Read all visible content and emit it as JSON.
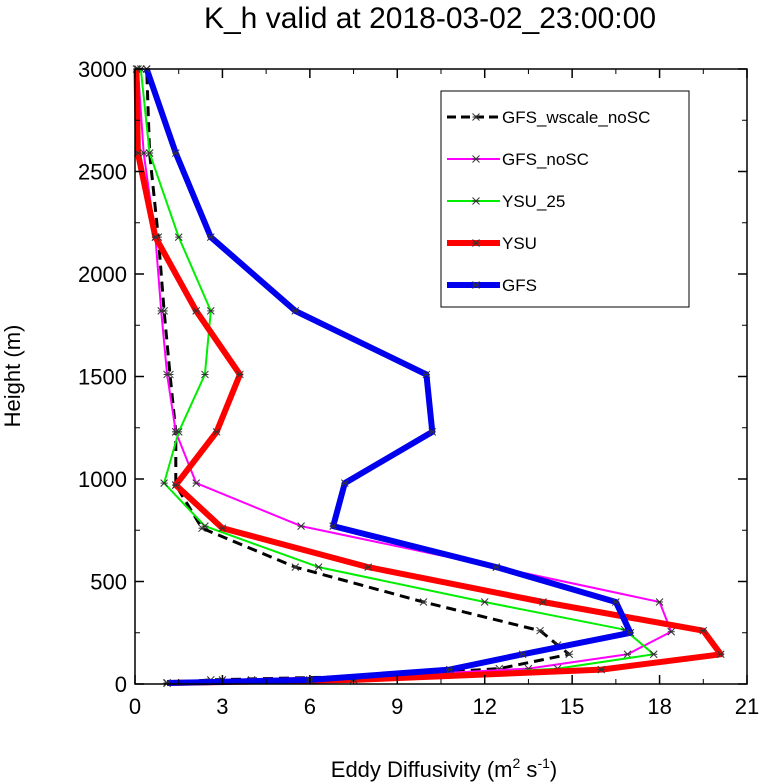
{
  "chart_data": {
    "type": "line",
    "title": "K_h valid at 2018-03-02_23:00:00",
    "xlabel_main": "Eddy Diffusivity (m",
    "xlabel_sup1": "2",
    "xlabel_mid": " s",
    "xlabel_sup2": "-1",
    "xlabel_end": ")",
    "ylabel": "Height (m)",
    "xlim": [
      0,
      21
    ],
    "ylim": [
      0,
      3000
    ],
    "xticks": [
      0,
      3,
      6,
      9,
      12,
      15,
      18,
      21
    ],
    "yticks": [
      0,
      500,
      1000,
      1500,
      2000,
      2500,
      3000
    ],
    "legend_position": "upper-right",
    "series": [
      {
        "name": "GFS_wscale_noSC",
        "color": "#000000",
        "width": 3,
        "dash": "10,6",
        "points": [
          [
            1.1,
            5
          ],
          [
            2.6,
            20
          ],
          [
            8.6,
            40
          ],
          [
            12.5,
            75
          ],
          [
            14.9,
            145
          ],
          [
            14.5,
            190
          ],
          [
            13.9,
            260
          ],
          [
            9.9,
            400
          ],
          [
            5.5,
            570
          ],
          [
            2.3,
            760
          ],
          [
            1.4,
            970
          ],
          [
            1.4,
            1230
          ],
          [
            1.2,
            1510
          ],
          [
            1.0,
            1820
          ],
          [
            0.8,
            2180
          ],
          [
            0.5,
            2590
          ],
          [
            0.4,
            3000
          ]
        ]
      },
      {
        "name": "GFS_noSC",
        "color": "#ff00ff",
        "width": 2,
        "dash": "",
        "points": [
          [
            1.1,
            5
          ],
          [
            3.0,
            20
          ],
          [
            8.8,
            40
          ],
          [
            13.5,
            75
          ],
          [
            16.9,
            145
          ],
          [
            18.4,
            255
          ],
          [
            18.0,
            400
          ],
          [
            12.4,
            570
          ],
          [
            5.7,
            770
          ],
          [
            2.1,
            980
          ],
          [
            1.4,
            1230
          ],
          [
            1.1,
            1510
          ],
          [
            0.9,
            1820
          ],
          [
            0.7,
            2180
          ],
          [
            0.3,
            2590
          ],
          [
            0.1,
            3000
          ]
        ]
      },
      {
        "name": "YSU_25",
        "color": "#00ee00",
        "width": 2,
        "dash": "",
        "points": [
          [
            1.1,
            5
          ],
          [
            4.0,
            20
          ],
          [
            10.3,
            40
          ],
          [
            14.5,
            75
          ],
          [
            17.8,
            145
          ],
          [
            16.8,
            265
          ],
          [
            12.0,
            400
          ],
          [
            6.3,
            570
          ],
          [
            2.4,
            770
          ],
          [
            1.0,
            980
          ],
          [
            1.5,
            1230
          ],
          [
            2.4,
            1510
          ],
          [
            2.6,
            1820
          ],
          [
            1.5,
            2180
          ],
          [
            0.5,
            2590
          ],
          [
            0.2,
            3000
          ]
        ]
      },
      {
        "name": "YSU",
        "color": "#ff0000",
        "width": 6,
        "dash": "",
        "points": [
          [
            1.1,
            5
          ],
          [
            7.5,
            20
          ],
          [
            16.0,
            70
          ],
          [
            20.1,
            145
          ],
          [
            19.5,
            260
          ],
          [
            14.0,
            400
          ],
          [
            8.0,
            570
          ],
          [
            3.0,
            760
          ],
          [
            1.4,
            970
          ],
          [
            2.8,
            1230
          ],
          [
            3.6,
            1510
          ],
          [
            2.1,
            1820
          ],
          [
            0.7,
            2180
          ],
          [
            0.1,
            2590
          ],
          [
            0.05,
            3000
          ]
        ]
      },
      {
        "name": "GFS",
        "color": "#0000ee",
        "width": 6,
        "dash": "",
        "points": [
          [
            1.1,
            5
          ],
          [
            6.0,
            20
          ],
          [
            10.8,
            70
          ],
          [
            13.3,
            145
          ],
          [
            17.0,
            250
          ],
          [
            16.5,
            400
          ],
          [
            12.4,
            570
          ],
          [
            6.8,
            770
          ],
          [
            7.2,
            980
          ],
          [
            10.2,
            1230
          ],
          [
            10.0,
            1510
          ],
          [
            5.5,
            1820
          ],
          [
            2.6,
            2180
          ],
          [
            1.4,
            2590
          ],
          [
            0.4,
            3000
          ]
        ]
      }
    ]
  }
}
